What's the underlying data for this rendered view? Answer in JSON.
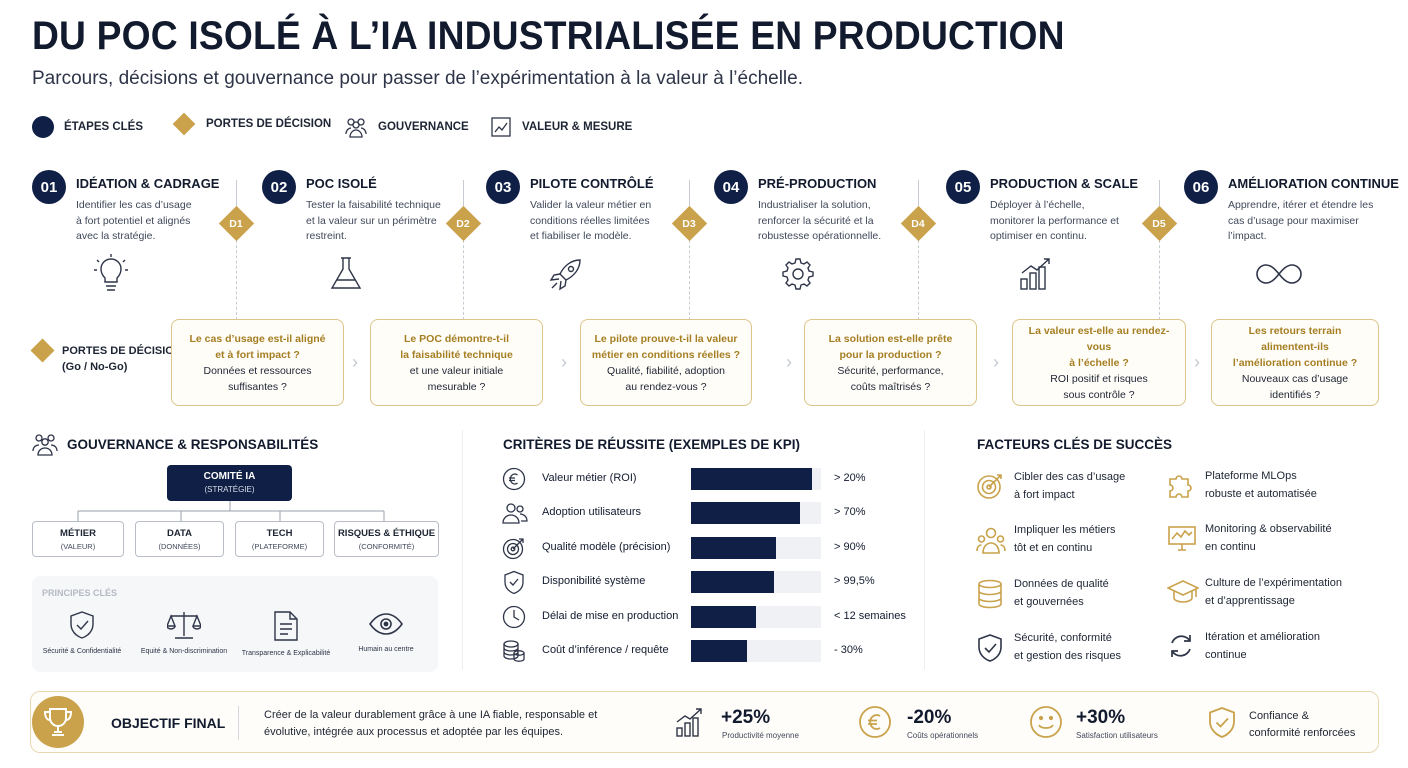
{
  "header": {
    "title": "DU POC ISOLÉ À L’IA INDUSTRIALISÉE EN PRODUCTION",
    "subtitle": "Parcours, décisions et gouvernance pour passer de l’expérimentation à la valeur à l’échelle."
  },
  "legend": [
    {
      "label": "ÉTAPES CLÉS",
      "icon": "navy-dot"
    },
    {
      "label": "PORTES DE DÉCISION",
      "icon": "gold-diamond"
    },
    {
      "label": "GOUVERNANCE",
      "icon": "people-icon"
    },
    {
      "label": "VALEUR & MESURE",
      "icon": "chart-icon"
    }
  ],
  "stages": [
    {
      "num": "01",
      "title": "IDÉATION & CADRAGE",
      "desc": "Identifier les cas d’usage à fort potentiel et alignés avec la stratégie.",
      "icon": "lightbulb-icon"
    },
    {
      "num": "02",
      "title": "POC ISOLÉ",
      "desc": "Tester la faisabilité technique et la valeur sur un périmètre restreint.",
      "icon": "flask-icon"
    },
    {
      "num": "03",
      "title": "PILOTE CONTRÔLÉ",
      "desc": "Valider la valeur métier en conditions réelles limitées et fiabiliser le modèle.",
      "icon": "rocket-icon"
    },
    {
      "num": "04",
      "title": "PRÉ-PRODUCTION",
      "desc": "Industrialiser la solution, renforcer la sécurité et la robustesse opérationnelle.",
      "icon": "gear-icon"
    },
    {
      "num": "05",
      "title": "PRODUCTION & SCALE",
      "desc": "Déployer à l’échelle, monitorer la performance et optimiser en continu.",
      "icon": "growth-chart-icon"
    },
    {
      "num": "06",
      "title": "AMÉLIORATION CONTINUE",
      "desc": "Apprendre, itérer et étendre les cas d’usage pour maximiser l’impact.",
      "icon": "infinity-icon"
    }
  ],
  "gates": {
    "label_line1": "PORTES DE DÉCISION",
    "label_line2": "(Go / No-Go)",
    "items": [
      {
        "code": "D1",
        "q_gold": [
          "Le cas d’usage est-il aligné",
          "et à fort impact ?"
        ],
        "q_dark": [
          "Données et ressources",
          "suffisantes ?"
        ]
      },
      {
        "code": "D2",
        "q_gold": [
          "Le POC démontre-t-il",
          "la faisabilité technique"
        ],
        "q_dark": [
          "et une valeur initiale",
          "mesurable ?"
        ]
      },
      {
        "code": "D3",
        "q_gold": [
          "Le pilote prouve-t-il la valeur",
          "métier en conditions réelles ?"
        ],
        "q_dark": [
          "Qualité, fiabilité, adoption",
          "au rendez-vous ?"
        ]
      },
      {
        "code": "D4",
        "q_gold": [
          "La solution est-elle prête",
          "pour la production ?"
        ],
        "q_dark": [
          "Sécurité, performance,",
          "coûts maîtrisés ?"
        ]
      },
      {
        "code": "D5",
        "q_gold": [
          "La valeur est-elle au rendez-vous",
          "à l’échelle ?"
        ],
        "q_dark": [
          "ROI positif et risques",
          "sous contrôle ?"
        ]
      },
      {
        "code": "",
        "q_gold": [
          "Les retours terrain alimentent-ils",
          "l’amélioration continue ?"
        ],
        "q_dark": [
          "Nouveaux cas d’usage",
          "identifiés ?"
        ]
      }
    ]
  },
  "governance": {
    "title": "GOUVERNANCE & RESPONSABILITÉS",
    "committee": {
      "name": "COMITÉ IA",
      "sub": "(STRATÉGIE)"
    },
    "boxes": [
      {
        "name": "MÉTIER",
        "sub": "(VALEUR)"
      },
      {
        "name": "DATA",
        "sub": "(DONNÉES)"
      },
      {
        "name": "TECH",
        "sub": "(PLATEFORME)"
      },
      {
        "name": "RISQUES & ÉTHIQUE",
        "sub": "(CONFORMITÉ)"
      }
    ],
    "principles_title": "PRINCIPES CLÉS",
    "principles": [
      {
        "label": "Sécurité & Confidentialité",
        "icon": "shield-check-icon"
      },
      {
        "label": "Equité & Non-discrimination",
        "icon": "scales-icon"
      },
      {
        "label": "Transparence & Explicabilité",
        "icon": "document-icon"
      },
      {
        "label": "Humain au centre",
        "icon": "eye-icon"
      }
    ]
  },
  "kpis": {
    "title": "CRITÈRES DE RÉUSSITE (EXEMPLES DE KPI)",
    "items": [
      {
        "label": "Valeur métier (ROI)",
        "target": "> 20%",
        "fill": 0.93,
        "icon": "euro-icon"
      },
      {
        "label": "Adoption utilisateurs",
        "target": "> 70%",
        "fill": 0.84,
        "icon": "users-icon"
      },
      {
        "label": "Qualité modèle (précision)",
        "target": "> 90%",
        "fill": 0.65,
        "icon": "target-icon"
      },
      {
        "label": "Disponibilité système",
        "target": "> 99,5%",
        "fill": 0.64,
        "icon": "shield-check-icon"
      },
      {
        "label": "Délai de mise en production",
        "target": "< 12 semaines",
        "fill": 0.5,
        "icon": "clock-icon"
      },
      {
        "label": "Coût d’inférence / requête",
        "target": "- 30%",
        "fill": 0.43,
        "icon": "coins-icon"
      }
    ]
  },
  "success_factors": {
    "title": "FACTEURS CLÉS DE SUCCÈS",
    "items": [
      {
        "line1": "Cibler des cas d’usage",
        "line2": "à fort impact",
        "icon": "target-icon"
      },
      {
        "line1": "Plateforme MLOps",
        "line2": "robuste et automatisée",
        "icon": "puzzle-icon"
      },
      {
        "line1": "Impliquer les métiers",
        "line2": "tôt et en continu",
        "icon": "team-icon"
      },
      {
        "line1": "Monitoring & observabilité",
        "line2": "en continu",
        "icon": "monitor-icon"
      },
      {
        "line1": "Données de qualité",
        "line2": "et gouvernées",
        "icon": "database-icon"
      },
      {
        "line1": "Culture de l’expérimentation",
        "line2": "et d’apprentissage",
        "icon": "graduation-cap-icon"
      },
      {
        "line1": "Sécurité, conformité",
        "line2": "et gestion des risques",
        "icon": "shield-check-icon"
      },
      {
        "line1": "Itération et amélioration",
        "line2": "continue",
        "icon": "cycle-icon"
      }
    ]
  },
  "footer": {
    "title": "OBJECTIF FINAL",
    "text": "Créer de la valeur durablement grâce à une IA fiable, responsable et évolutive, intégrée aux processus et adoptée par les équipes.",
    "metrics": [
      {
        "value": "+25%",
        "label": "Productivité moyenne",
        "icon": "growth-chart-icon"
      },
      {
        "value": "-20%",
        "label": "Coûts opérationnels",
        "icon": "euro-icon"
      },
      {
        "value": "+30%",
        "label": "Satisfaction utilisateurs",
        "icon": "smiley-icon"
      }
    ],
    "confidence_line1": "Confiance &",
    "confidence_line2": "conformité renforcées"
  },
  "colors": {
    "navy": "#0f1f45",
    "gold": "#c9a24b",
    "gold_text": "#a57e22"
  }
}
